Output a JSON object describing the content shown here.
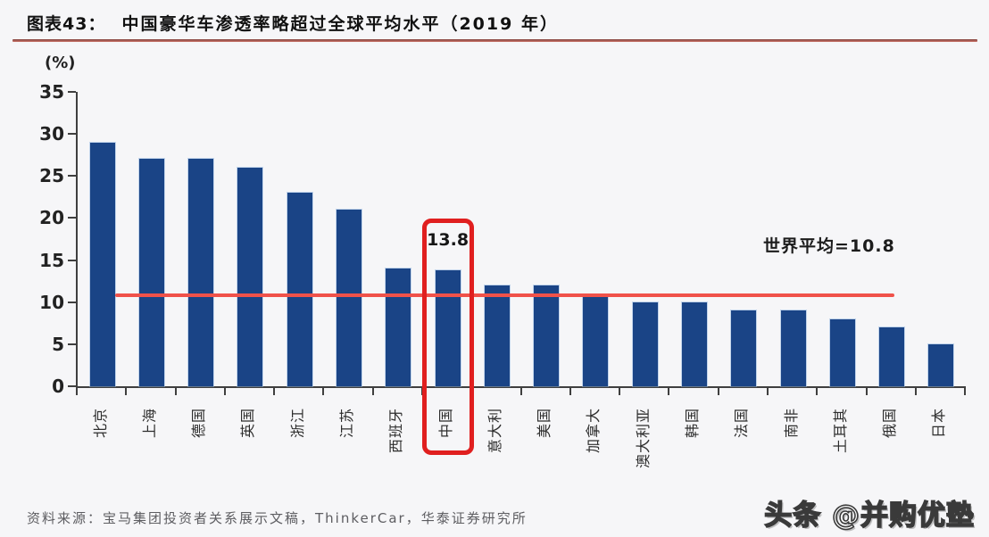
{
  "header": {
    "figure_label": "图表43：",
    "title": "中国豪华车渗透率略超过全球平均水平（2019 年）"
  },
  "chart_data": {
    "type": "bar",
    "title": "中国豪华车渗透率略超过全球平均水平（2019 年）",
    "unit_label": "(%)",
    "categories": [
      "北京",
      "上海",
      "德国",
      "英国",
      "浙江",
      "江苏",
      "西班牙",
      "中国",
      "意大利",
      "美国",
      "加拿大",
      "澳大利亚",
      "韩国",
      "法国",
      "南非",
      "土耳其",
      "俄国",
      "日本"
    ],
    "values": [
      29,
      27,
      27,
      26,
      23,
      21,
      14,
      13.8,
      12,
      12,
      10.6,
      10,
      10,
      9,
      9,
      8,
      7,
      5
    ],
    "ylim": [
      0,
      35
    ],
    "yticks": [
      35,
      30,
      25,
      20,
      15,
      10,
      5,
      0
    ],
    "grid": false,
    "legend": false,
    "bar_color": "#1a4486",
    "reference_line": {
      "value": 10.8,
      "label": "世界平均=10.8",
      "color": "#f0524a"
    },
    "highlight": {
      "index": 7,
      "category": "中国",
      "data_label": "13.8",
      "box_color": "#e01f1f"
    }
  },
  "footer": {
    "source": "资料来源：宝马集团投资者关系展示文稿，ThinkerCar，华泰证券研究所",
    "watermark": "头条 @并购优塾"
  }
}
